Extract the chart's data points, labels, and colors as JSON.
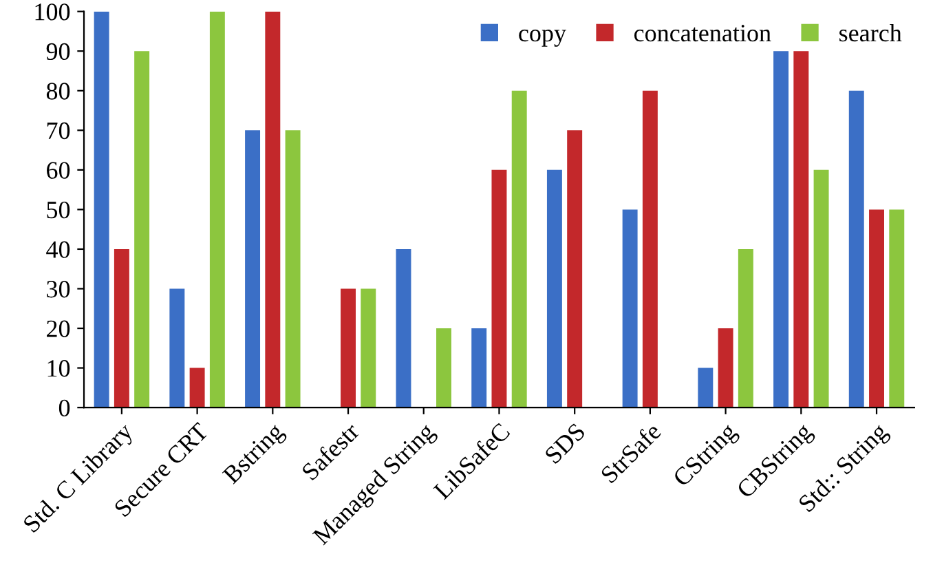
{
  "chart_data": {
    "type": "bar",
    "categories": [
      "Std. C Library",
      "Secure CRT",
      "Bstring",
      "Safestr",
      "Managed String",
      "LibSafeC",
      "SDS",
      "StrSafe",
      "CString",
      "CBString",
      "Std:: String"
    ],
    "series": [
      {
        "name": "copy",
        "color": "#3b6fc6",
        "values": [
          100,
          30,
          70,
          0,
          40,
          20,
          60,
          50,
          10,
          90,
          80
        ]
      },
      {
        "name": "concatenation",
        "color": "#c3282b",
        "values": [
          40,
          10,
          100,
          30,
          0,
          60,
          70,
          80,
          20,
          90,
          50
        ]
      },
      {
        "name": "search",
        "color": "#8cc63e",
        "values": [
          90,
          100,
          70,
          30,
          20,
          80,
          0,
          0,
          40,
          60,
          50
        ]
      }
    ],
    "ylim": [
      0,
      100
    ],
    "yticks": [
      0,
      10,
      20,
      30,
      40,
      50,
      60,
      70,
      80,
      90,
      100
    ],
    "grid": false,
    "legend": "top right"
  }
}
